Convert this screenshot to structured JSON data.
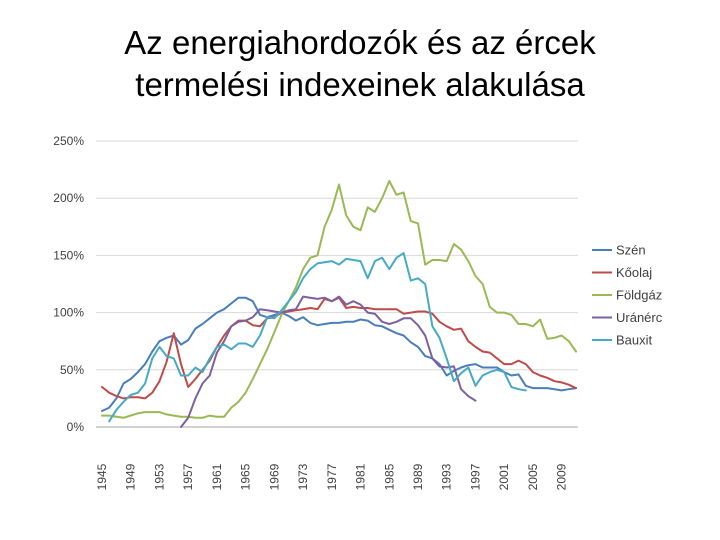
{
  "title": {
    "line1": "Az energiahordozók és az ércek",
    "line2": "termelési indexeinek alakulása"
  },
  "chart_data": {
    "type": "line",
    "ylim": [
      0,
      250
    ],
    "y_ticks": [
      0,
      50,
      100,
      150,
      200,
      250
    ],
    "y_tick_labels": [
      "0%",
      "50%",
      "100%",
      "150%",
      "200%",
      "250%"
    ],
    "x_range": [
      1945,
      2011
    ],
    "x_ticks": [
      1945,
      1949,
      1953,
      1957,
      1961,
      1965,
      1969,
      1973,
      1977,
      1981,
      1985,
      1989,
      1993,
      1997,
      2001,
      2005,
      2009
    ],
    "grid": "horizontal",
    "legend_position": "right",
    "series": [
      {
        "name": "Szén",
        "color": "#4A7EBB",
        "points": [
          [
            1945,
            14
          ],
          [
            1946,
            17
          ],
          [
            1947,
            25
          ],
          [
            1948,
            38
          ],
          [
            1949,
            42
          ],
          [
            1950,
            48
          ],
          [
            1951,
            55
          ],
          [
            1952,
            66
          ],
          [
            1953,
            75
          ],
          [
            1954,
            78
          ],
          [
            1955,
            80
          ],
          [
            1956,
            72
          ],
          [
            1957,
            76
          ],
          [
            1958,
            86
          ],
          [
            1959,
            90
          ],
          [
            1960,
            95
          ],
          [
            1961,
            100
          ],
          [
            1962,
            103
          ],
          [
            1963,
            108
          ],
          [
            1964,
            113
          ],
          [
            1965,
            113
          ],
          [
            1966,
            110
          ],
          [
            1967,
            98
          ],
          [
            1968,
            96
          ],
          [
            1969,
            98
          ],
          [
            1970,
            100
          ],
          [
            1971,
            97
          ],
          [
            1972,
            93
          ],
          [
            1973,
            96
          ],
          [
            1974,
            91
          ],
          [
            1975,
            89
          ],
          [
            1976,
            90
          ],
          [
            1977,
            91
          ],
          [
            1978,
            91
          ],
          [
            1979,
            92
          ],
          [
            1980,
            92
          ],
          [
            1981,
            94
          ],
          [
            1982,
            93
          ],
          [
            1983,
            89
          ],
          [
            1984,
            88
          ],
          [
            1985,
            85
          ],
          [
            1986,
            82
          ],
          [
            1987,
            80
          ],
          [
            1988,
            74
          ],
          [
            1989,
            70
          ],
          [
            1990,
            62
          ],
          [
            1991,
            60
          ],
          [
            1992,
            55
          ],
          [
            1993,
            45
          ],
          [
            1994,
            49
          ],
          [
            1995,
            52
          ],
          [
            1996,
            54
          ],
          [
            1997,
            55
          ],
          [
            1998,
            52
          ],
          [
            1999,
            52
          ],
          [
            2000,
            52
          ],
          [
            2001,
            48
          ],
          [
            2002,
            45
          ],
          [
            2003,
            46
          ],
          [
            2004,
            36
          ],
          [
            2005,
            34
          ],
          [
            2006,
            34
          ],
          [
            2007,
            34
          ],
          [
            2008,
            33
          ],
          [
            2009,
            32
          ],
          [
            2010,
            33
          ],
          [
            2011,
            34
          ]
        ]
      },
      {
        "name": "Kőolaj",
        "color": "#BE4B48",
        "points": [
          [
            1945,
            35
          ],
          [
            1946,
            30
          ],
          [
            1947,
            27
          ],
          [
            1948,
            25
          ],
          [
            1949,
            26
          ],
          [
            1950,
            26
          ],
          [
            1951,
            25
          ],
          [
            1952,
            30
          ],
          [
            1953,
            40
          ],
          [
            1954,
            57
          ],
          [
            1955,
            82
          ],
          [
            1956,
            55
          ],
          [
            1957,
            35
          ],
          [
            1958,
            42
          ],
          [
            1959,
            50
          ],
          [
            1960,
            58
          ],
          [
            1961,
            70
          ],
          [
            1962,
            80
          ],
          [
            1963,
            88
          ],
          [
            1964,
            93
          ],
          [
            1965,
            93
          ],
          [
            1966,
            89
          ],
          [
            1967,
            88
          ],
          [
            1968,
            95
          ],
          [
            1969,
            96
          ],
          [
            1970,
            100
          ],
          [
            1971,
            101
          ],
          [
            1972,
            102
          ],
          [
            1973,
            103
          ],
          [
            1974,
            104
          ],
          [
            1975,
            103
          ],
          [
            1976,
            112
          ],
          [
            1977,
            110
          ],
          [
            1978,
            113
          ],
          [
            1979,
            104
          ],
          [
            1980,
            105
          ],
          [
            1981,
            104
          ],
          [
            1982,
            104
          ],
          [
            1983,
            103
          ],
          [
            1984,
            103
          ],
          [
            1985,
            103
          ],
          [
            1986,
            103
          ],
          [
            1987,
            99
          ],
          [
            1988,
            100
          ],
          [
            1989,
            101
          ],
          [
            1990,
            101
          ],
          [
            1991,
            99
          ],
          [
            1992,
            92
          ],
          [
            1993,
            88
          ],
          [
            1994,
            85
          ],
          [
            1995,
            86
          ],
          [
            1996,
            75
          ],
          [
            1997,
            70
          ],
          [
            1998,
            66
          ],
          [
            1999,
            65
          ],
          [
            2000,
            60
          ],
          [
            2001,
            55
          ],
          [
            2002,
            55
          ],
          [
            2003,
            58
          ],
          [
            2004,
            55
          ],
          [
            2005,
            48
          ],
          [
            2006,
            45
          ],
          [
            2007,
            43
          ],
          [
            2008,
            40
          ],
          [
            2009,
            39
          ],
          [
            2010,
            37
          ],
          [
            2011,
            34
          ]
        ]
      },
      {
        "name": "Földgáz",
        "color": "#98B954",
        "points": [
          [
            1945,
            10
          ],
          [
            1946,
            10
          ],
          [
            1947,
            9
          ],
          [
            1948,
            8
          ],
          [
            1949,
            10
          ],
          [
            1950,
            12
          ],
          [
            1951,
            13
          ],
          [
            1952,
            13
          ],
          [
            1953,
            13
          ],
          [
            1954,
            11
          ],
          [
            1955,
            10
          ],
          [
            1956,
            9
          ],
          [
            1957,
            9
          ],
          [
            1958,
            8
          ],
          [
            1959,
            8
          ],
          [
            1960,
            10
          ],
          [
            1961,
            9
          ],
          [
            1962,
            9
          ],
          [
            1963,
            17
          ],
          [
            1964,
            22
          ],
          [
            1965,
            30
          ],
          [
            1966,
            42
          ],
          [
            1967,
            55
          ],
          [
            1968,
            68
          ],
          [
            1969,
            83
          ],
          [
            1970,
            98
          ],
          [
            1971,
            110
          ],
          [
            1972,
            122
          ],
          [
            1973,
            138
          ],
          [
            1974,
            148
          ],
          [
            1975,
            150
          ],
          [
            1976,
            175
          ],
          [
            1977,
            190
          ],
          [
            1978,
            212
          ],
          [
            1979,
            185
          ],
          [
            1980,
            175
          ],
          [
            1981,
            172
          ],
          [
            1982,
            192
          ],
          [
            1983,
            188
          ],
          [
            1984,
            200
          ],
          [
            1985,
            215
          ],
          [
            1986,
            203
          ],
          [
            1987,
            205
          ],
          [
            1988,
            180
          ],
          [
            1989,
            178
          ],
          [
            1990,
            142
          ],
          [
            1991,
            146
          ],
          [
            1992,
            146
          ],
          [
            1993,
            145
          ],
          [
            1994,
            160
          ],
          [
            1995,
            155
          ],
          [
            1996,
            145
          ],
          [
            1997,
            132
          ],
          [
            1998,
            125
          ],
          [
            1999,
            105
          ],
          [
            2000,
            100
          ],
          [
            2001,
            100
          ],
          [
            2002,
            98
          ],
          [
            2003,
            90
          ],
          [
            2004,
            90
          ],
          [
            2005,
            88
          ],
          [
            2006,
            94
          ],
          [
            2007,
            77
          ],
          [
            2008,
            78
          ],
          [
            2009,
            80
          ],
          [
            2010,
            75
          ],
          [
            2011,
            66
          ]
        ]
      },
      {
        "name": "Uránérc",
        "color": "#7D60A0",
        "points": [
          [
            1956,
            0
          ],
          [
            1957,
            8
          ],
          [
            1958,
            25
          ],
          [
            1959,
            38
          ],
          [
            1960,
            45
          ],
          [
            1961,
            65
          ],
          [
            1962,
            75
          ],
          [
            1963,
            88
          ],
          [
            1964,
            92
          ],
          [
            1965,
            93
          ],
          [
            1966,
            96
          ],
          [
            1967,
            103
          ],
          [
            1968,
            102
          ],
          [
            1969,
            101
          ],
          [
            1970,
            100
          ],
          [
            1971,
            102
          ],
          [
            1972,
            103
          ],
          [
            1973,
            114
          ],
          [
            1974,
            113
          ],
          [
            1975,
            112
          ],
          [
            1976,
            113
          ],
          [
            1977,
            110
          ],
          [
            1978,
            114
          ],
          [
            1979,
            107
          ],
          [
            1980,
            110
          ],
          [
            1981,
            107
          ],
          [
            1982,
            100
          ],
          [
            1983,
            99
          ],
          [
            1984,
            92
          ],
          [
            1985,
            90
          ],
          [
            1986,
            92
          ],
          [
            1987,
            95
          ],
          [
            1988,
            95
          ],
          [
            1989,
            89
          ],
          [
            1990,
            80
          ],
          [
            1991,
            60
          ],
          [
            1992,
            53
          ],
          [
            1993,
            52
          ],
          [
            1994,
            53
          ],
          [
            1995,
            33
          ],
          [
            1996,
            27
          ],
          [
            1997,
            23
          ]
        ]
      },
      {
        "name": "Bauxit",
        "color": "#46AAC4",
        "points": [
          [
            1946,
            5
          ],
          [
            1947,
            15
          ],
          [
            1948,
            22
          ],
          [
            1949,
            28
          ],
          [
            1950,
            30
          ],
          [
            1951,
            38
          ],
          [
            1952,
            60
          ],
          [
            1953,
            70
          ],
          [
            1954,
            62
          ],
          [
            1955,
            60
          ],
          [
            1956,
            45
          ],
          [
            1957,
            45
          ],
          [
            1958,
            52
          ],
          [
            1959,
            48
          ],
          [
            1960,
            60
          ],
          [
            1961,
            70
          ],
          [
            1962,
            72
          ],
          [
            1963,
            68
          ],
          [
            1964,
            73
          ],
          [
            1965,
            73
          ],
          [
            1966,
            70
          ],
          [
            1967,
            80
          ],
          [
            1968,
            96
          ],
          [
            1969,
            95
          ],
          [
            1970,
            102
          ],
          [
            1971,
            110
          ],
          [
            1972,
            118
          ],
          [
            1973,
            130
          ],
          [
            1974,
            138
          ],
          [
            1975,
            143
          ],
          [
            1976,
            144
          ],
          [
            1977,
            145
          ],
          [
            1978,
            142
          ],
          [
            1979,
            147
          ],
          [
            1980,
            146
          ],
          [
            1981,
            145
          ],
          [
            1982,
            130
          ],
          [
            1983,
            145
          ],
          [
            1984,
            148
          ],
          [
            1985,
            138
          ],
          [
            1986,
            148
          ],
          [
            1987,
            152
          ],
          [
            1988,
            128
          ],
          [
            1989,
            130
          ],
          [
            1990,
            125
          ],
          [
            1991,
            88
          ],
          [
            1992,
            78
          ],
          [
            1993,
            60
          ],
          [
            1994,
            40
          ],
          [
            1995,
            47
          ],
          [
            1996,
            52
          ],
          [
            1997,
            36
          ],
          [
            1998,
            45
          ],
          [
            1999,
            48
          ],
          [
            2000,
            50
          ],
          [
            2001,
            48
          ],
          [
            2002,
            35
          ],
          [
            2003,
            33
          ],
          [
            2004,
            32
          ]
        ]
      }
    ]
  }
}
